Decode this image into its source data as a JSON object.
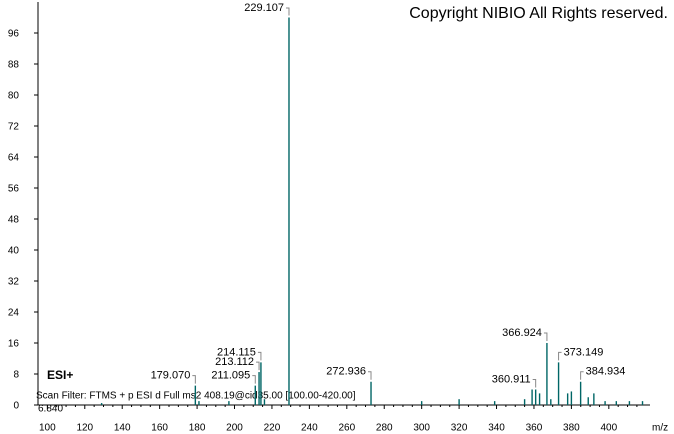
{
  "chart_data": {
    "type": "stem",
    "copyright": "Copyright NIBIO All Rights reserved.",
    "ion_mode": "ESI+",
    "scan_filter": "Scan Filter: FTMS + p ESI d Full ms2 408.19@cid35.00 [100.00-420.00]",
    "baseline_label": "6.840",
    "x_label": "m/z",
    "color": "#006666",
    "label_color": "#1a1a8c",
    "x": [
      129,
      179.07,
      181,
      197,
      211.095,
      213.112,
      214.115,
      216,
      229.107,
      272.936,
      300,
      320,
      339,
      355,
      359,
      360.911,
      363,
      366.924,
      369,
      373.149,
      378,
      380,
      384.934,
      389,
      392,
      398,
      404,
      411,
      418
    ],
    "values": [
      0.5,
      5,
      1,
      1,
      5,
      8.5,
      11,
      1.5,
      100,
      6,
      1,
      1.5,
      1,
      1.5,
      4,
      4,
      3,
      16,
      1.5,
      11,
      3,
      3.5,
      6,
      2,
      3,
      1,
      1,
      1,
      1
    ],
    "peak_labels": [
      null,
      "179.070",
      null,
      null,
      "211.095",
      "213.112",
      "214.115",
      null,
      "229.107",
      "272.936",
      null,
      null,
      null,
      null,
      null,
      "360.911",
      null,
      "366.924",
      null,
      "373.149",
      null,
      null,
      "384.934",
      null,
      null,
      null,
      null,
      null,
      null
    ],
    "xlim": [
      95,
      422
    ],
    "xticks": [
      100,
      120,
      140,
      160,
      180,
      200,
      220,
      240,
      260,
      280,
      300,
      320,
      340,
      360,
      380,
      400
    ],
    "ylim": [
      0,
      104
    ],
    "yticks": [
      0,
      8,
      16,
      24,
      32,
      40,
      48,
      56,
      64,
      72,
      80,
      88,
      96
    ]
  }
}
